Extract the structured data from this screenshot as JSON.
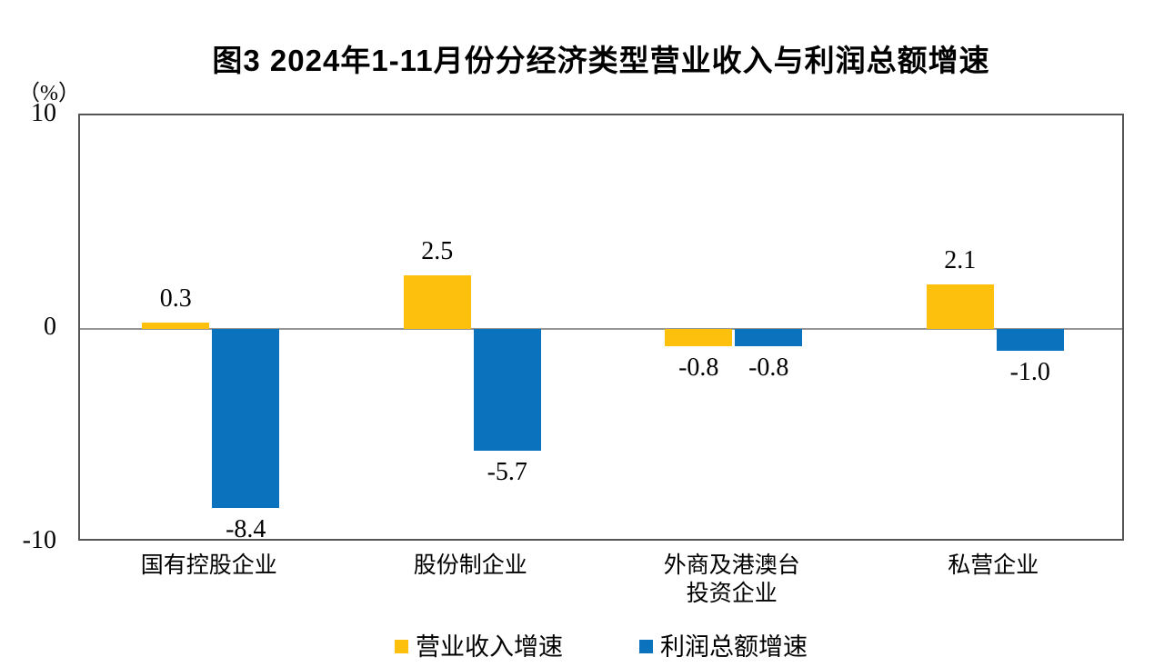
{
  "title": "图3 2024年1-11月份分经济类型营业收入与利润总额增速",
  "y_axis": {
    "unit_label": "（%）",
    "tick_labels": [
      "10",
      "0",
      "-10"
    ]
  },
  "colors": {
    "revenue_bar": "#FDC00D",
    "profit_bar": "#0B72BE",
    "zero_line": "#969696",
    "plot_border": "#555555"
  },
  "chart_data": {
    "type": "bar",
    "title": "图3 2024年1-11月份分经济类型营业收入与利润总额增速",
    "categories": [
      "国有控股企业",
      "股份制企业",
      "外商及港澳台\n投资企业",
      "私营企业"
    ],
    "series": [
      {
        "name": "营业收入增速",
        "color": "#FDC00D",
        "values": [
          0.3,
          2.5,
          -0.8,
          2.1
        ]
      },
      {
        "name": "利润总额增速",
        "color": "#0B72BE",
        "values": [
          -8.4,
          -5.7,
          -0.8,
          -1.0
        ]
      }
    ],
    "ylabel": "（%）",
    "ylim": [
      -10,
      10
    ],
    "yticks": [
      10,
      0,
      -10
    ],
    "grid": false,
    "zero_baseline": true,
    "value_labels_decimals": 1,
    "legend_position": "bottom"
  },
  "legend": {
    "items": [
      {
        "label": "营业收入增速",
        "color": "#FDC00D"
      },
      {
        "label": "利润总额增速",
        "color": "#0B72BE"
      }
    ]
  }
}
